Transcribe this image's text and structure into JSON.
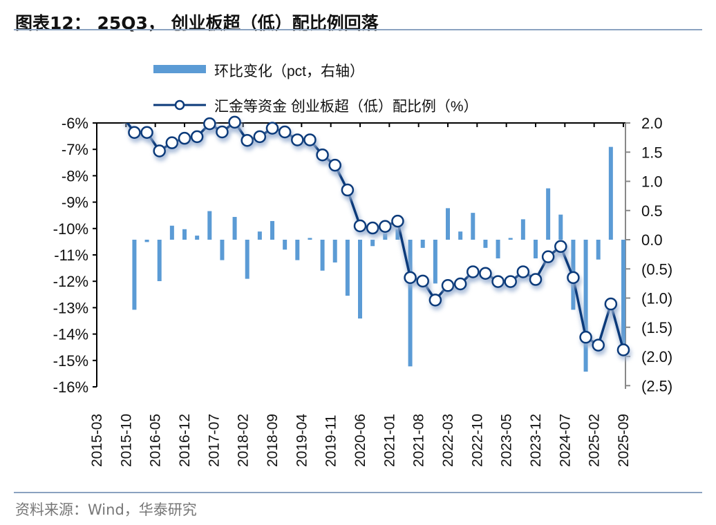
{
  "title": "图表12： 25Q3， 创业板超（低）配比例回落",
  "source": "资料来源：Wind，华泰研究",
  "chart_data": {
    "type": "bar+line",
    "legend": [
      {
        "name": "环比变化（pct，右轴）",
        "type": "bar",
        "axis": "right"
      },
      {
        "name": "汇金等资金 创业板超（低）配比例（%）",
        "type": "line",
        "axis": "left"
      }
    ],
    "legend_placement": "top-center",
    "x": [
      "2015-09",
      "2015-12",
      "2016-03",
      "2016-06",
      "2016-09",
      "2016-12",
      "2017-03",
      "2017-06",
      "2017-09",
      "2017-12",
      "2018-03",
      "2018-06",
      "2018-09",
      "2018-12",
      "2019-03",
      "2019-06",
      "2019-09",
      "2019-12",
      "2020-03",
      "2020-06",
      "2020-09",
      "2020-12",
      "2021-03",
      "2021-06",
      "2021-09",
      "2021-12",
      "2022-03",
      "2022-06",
      "2022-09",
      "2022-12",
      "2023-03",
      "2023-06",
      "2023-09",
      "2023-12",
      "2024-03",
      "2024-06",
      "2024-09",
      "2024-12",
      "2025-03",
      "2025-06",
      "2025-09"
    ],
    "line_values": [
      -5.7,
      -6.36,
      -6.36,
      -7.06,
      -6.75,
      -6.58,
      -6.52,
      -6.03,
      -6.34,
      -5.97,
      -6.66,
      -6.52,
      -6.2,
      -6.34,
      -6.64,
      -6.64,
      -7.21,
      -7.6,
      -8.54,
      -9.9,
      -9.98,
      -9.92,
      -9.72,
      -11.86,
      -11.99,
      -12.71,
      -12.16,
      -12.1,
      -11.64,
      -11.7,
      -12.01,
      -12.01,
      -11.64,
      -11.93,
      -11.07,
      -10.68,
      -11.86,
      -14.12,
      -14.42,
      -12.86,
      -14.6
    ],
    "bar_values": [
      null,
      -1.2,
      -0.04,
      -0.71,
      0.24,
      0.18,
      0.07,
      0.49,
      -0.35,
      0.39,
      -0.67,
      0.14,
      0.32,
      -0.17,
      -0.35,
      0.03,
      -0.53,
      -0.39,
      -0.96,
      -1.35,
      -0.11,
      0.11,
      0.18,
      -2.17,
      -0.14,
      -0.75,
      0.54,
      0.14,
      0.46,
      -0.14,
      -0.32,
      0.03,
      0.35,
      -0.32,
      0.88,
      0.43,
      -1.2,
      -2.26,
      -0.34,
      1.59,
      -1.9
    ],
    "x_tick_labels": [
      "2015-03",
      "2015-10",
      "2016-05",
      "2016-12",
      "2017-07",
      "2018-02",
      "2018-09",
      "2019-04",
      "2019-11",
      "2020-06",
      "2021-01",
      "2021-08",
      "2022-03",
      "2022-10",
      "2023-05",
      "2023-12",
      "2024-07",
      "2025-02",
      "2025-09"
    ],
    "left_axis": {
      "ylim": [
        -16,
        -6
      ],
      "tick_labels": [
        "-6%",
        "-7%",
        "-8%",
        "-9%",
        "-10%",
        "-11%",
        "-12%",
        "-13%",
        "-14%",
        "-15%",
        "-16%"
      ]
    },
    "right_axis": {
      "ylim": [
        -2.5,
        2.0
      ],
      "tick_values": [
        2.0,
        1.5,
        1.0,
        0.5,
        0.0,
        -0.5,
        -1.0,
        -1.5,
        -2.0,
        -2.5
      ],
      "tick_labels": [
        "2.0",
        "1.5",
        "1.0",
        "0.5",
        "0.0",
        "(0.5)",
        "(1.0)",
        "(1.5)",
        "(2.0)",
        "(2.5)"
      ]
    },
    "colors": {
      "bar": "#5B9BD5",
      "line": "#0B3A7A"
    }
  }
}
